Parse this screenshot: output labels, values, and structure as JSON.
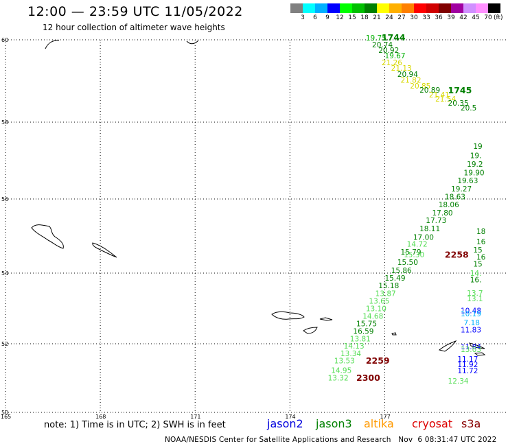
{
  "header": {
    "title": "12:00 — 23:59 UTC 11/05/2022",
    "subtitle": "12 hour collection of altimeter wave heights"
  },
  "legend": {
    "unit": "(ft)",
    "colors": [
      "#808080",
      "#00ffff",
      "#00b0ff",
      "#0000ff",
      "#00ff00",
      "#00c000",
      "#008000",
      "#ffff00",
      "#ffb000",
      "#ff8000",
      "#ff0000",
      "#d00000",
      "#800000",
      "#a000a0",
      "#d090ff",
      "#ff90ff",
      "#000000"
    ],
    "labels": [
      "3",
      "6",
      "9",
      "12",
      "15",
      "18",
      "21",
      "24",
      "27",
      "30",
      "33",
      "36",
      "39",
      "42",
      "45",
      "70"
    ]
  },
  "map": {
    "lat_labels": [
      "60",
      "58",
      "56",
      "54",
      "52",
      "50"
    ],
    "lon_labels": [
      "165",
      "168",
      "171",
      "174",
      "177"
    ]
  },
  "wave_labels": [
    {
      "t": "19.75",
      "lon": 176.4,
      "lat": 59.98,
      "c": "#00b000"
    },
    {
      "t": "20.74",
      "lon": 176.6,
      "lat": 59.82,
      "c": "#008000"
    },
    {
      "t": "20.92",
      "lon": 176.8,
      "lat": 59.68,
      "c": "#008000"
    },
    {
      "t": "19.67",
      "lon": 177.0,
      "lat": 59.55,
      "c": "#00b000"
    },
    {
      "t": "21.26",
      "lon": 176.9,
      "lat": 59.38,
      "c": "#d8d800"
    },
    {
      "t": "21.13",
      "lon": 177.2,
      "lat": 59.25,
      "c": "#d8d800"
    },
    {
      "t": "20.94",
      "lon": 177.4,
      "lat": 59.1,
      "c": "#008000"
    },
    {
      "t": "21.82",
      "lon": 177.5,
      "lat": 58.96,
      "c": "#d8d800"
    },
    {
      "t": "20.85",
      "lon": 177.8,
      "lat": 58.82,
      "c": "#d8d800"
    },
    {
      "t": "20.89",
      "lon": 178.1,
      "lat": 58.72,
      "c": "#008000"
    },
    {
      "t": "21.41",
      "lon": 178.4,
      "lat": 58.6,
      "c": "#d8d800"
    },
    {
      "t": "21.54",
      "lon": 178.6,
      "lat": 58.5,
      "c": "#d8d800"
    },
    {
      "t": "20.35",
      "lon": 179.0,
      "lat": 58.4,
      "c": "#008000"
    },
    {
      "t": "20.5",
      "lon": 179.4,
      "lat": 58.28,
      "c": "#008000"
    },
    {
      "t": "19",
      "lon": 179.8,
      "lat": 57.3,
      "c": "#008000"
    },
    {
      "t": "19.",
      "lon": 179.7,
      "lat": 57.06,
      "c": "#008000"
    },
    {
      "t": "19.2",
      "lon": 179.6,
      "lat": 56.84,
      "c": "#008000"
    },
    {
      "t": "19.90",
      "lon": 179.5,
      "lat": 56.62,
      "c": "#008000"
    },
    {
      "t": "19.63",
      "lon": 179.3,
      "lat": 56.41,
      "c": "#008000"
    },
    {
      "t": "19.27",
      "lon": 179.1,
      "lat": 56.2,
      "c": "#008000"
    },
    {
      "t": "18.63",
      "lon": 178.9,
      "lat": 55.99,
      "c": "#008000"
    },
    {
      "t": "18.06",
      "lon": 178.7,
      "lat": 55.78,
      "c": "#008000"
    },
    {
      "t": "17.80",
      "lon": 178.5,
      "lat": 55.56,
      "c": "#008000"
    },
    {
      "t": "17.73",
      "lon": 178.3,
      "lat": 55.35,
      "c": "#008000"
    },
    {
      "t": "18.11",
      "lon": 178.1,
      "lat": 55.13,
      "c": "#008000"
    },
    {
      "t": "17.00",
      "lon": 177.9,
      "lat": 54.9,
      "c": "#008000"
    },
    {
      "t": "14.72",
      "lon": 177.7,
      "lat": 54.71,
      "c": "#55dd55"
    },
    {
      "t": "15.79",
      "lon": 177.5,
      "lat": 54.5,
      "c": "#008000"
    },
    {
      "t": "15.30",
      "lon": 177.6,
      "lat": 54.43,
      "c": "#55dd55"
    },
    {
      "t": "15.50",
      "lon": 177.4,
      "lat": 54.22,
      "c": "#008000"
    },
    {
      "t": "15.86",
      "lon": 177.2,
      "lat": 54.0,
      "c": "#008000"
    },
    {
      "t": "15.49",
      "lon": 177.0,
      "lat": 53.79,
      "c": "#008000"
    },
    {
      "t": "15.18",
      "lon": 176.8,
      "lat": 53.57,
      "c": "#008000"
    },
    {
      "t": "13.87",
      "lon": 176.7,
      "lat": 53.35,
      "c": "#55dd55"
    },
    {
      "t": "13.65",
      "lon": 176.5,
      "lat": 53.14,
      "c": "#55dd55"
    },
    {
      "t": "13.10",
      "lon": 176.4,
      "lat": 52.92,
      "c": "#55dd55"
    },
    {
      "t": "14.68",
      "lon": 176.3,
      "lat": 52.71,
      "c": "#55dd55"
    },
    {
      "t": "15.75",
      "lon": 176.1,
      "lat": 52.5,
      "c": "#008000"
    },
    {
      "t": "16.59",
      "lon": 176.0,
      "lat": 52.28,
      "c": "#008000"
    },
    {
      "t": "13.81",
      "lon": 175.9,
      "lat": 52.07,
      "c": "#55dd55"
    },
    {
      "t": "14.13",
      "lon": 175.7,
      "lat": 51.86,
      "c": "#55dd55"
    },
    {
      "t": "13.34",
      "lon": 175.6,
      "lat": 51.64,
      "c": "#55dd55"
    },
    {
      "t": "13.53",
      "lon": 175.4,
      "lat": 51.43,
      "c": "#55dd55"
    },
    {
      "t": "14.95",
      "lon": 175.3,
      "lat": 51.15,
      "c": "#55dd55"
    },
    {
      "t": "13.32",
      "lon": 175.2,
      "lat": 50.93,
      "c": "#55dd55"
    },
    {
      "t": "18",
      "lon": 179.9,
      "lat": 55.06,
      "c": "#008000"
    },
    {
      "t": "16",
      "lon": 179.9,
      "lat": 54.78,
      "c": "#008000"
    },
    {
      "t": "15",
      "lon": 179.8,
      "lat": 54.56,
      "c": "#008000"
    },
    {
      "t": "16",
      "lon": 179.9,
      "lat": 54.36,
      "c": "#008000"
    },
    {
      "t": "15",
      "lon": 179.8,
      "lat": 54.18,
      "c": "#008000"
    },
    {
      "t": "14.",
      "lon": 179.7,
      "lat": 53.92,
      "c": "#55dd55"
    },
    {
      "t": "16.",
      "lon": 179.7,
      "lat": 53.74,
      "c": "#008000"
    },
    {
      "t": "13.7",
      "lon": 179.6,
      "lat": 53.36,
      "c": "#55dd55"
    },
    {
      "t": "13.1",
      "lon": 179.6,
      "lat": 53.2,
      "c": "#55dd55"
    },
    {
      "t": "10.48",
      "lon": 179.4,
      "lat": 52.86,
      "c": "#0000ff"
    },
    {
      "t": "10.19",
      "lon": 179.4,
      "lat": 52.78,
      "c": "#00b0ff"
    },
    {
      "t": "7.18",
      "lon": 179.5,
      "lat": 52.52,
      "c": "#00b0ff"
    },
    {
      "t": "11.83",
      "lon": 179.4,
      "lat": 52.32,
      "c": "#0000ff"
    },
    {
      "t": "11.84",
      "lon": 179.4,
      "lat": 51.84,
      "c": "#0000ff"
    },
    {
      "t": "13.03",
      "lon": 179.4,
      "lat": 51.76,
      "c": "#55dd55"
    },
    {
      "t": "11.17",
      "lon": 179.3,
      "lat": 51.48,
      "c": "#0000ff"
    },
    {
      "t": "11.92",
      "lon": 179.3,
      "lat": 51.32,
      "c": "#0000ff"
    },
    {
      "t": "11.72",
      "lon": 179.3,
      "lat": 51.14,
      "c": "#0000ff"
    },
    {
      "t": "12.34",
      "lon": 179.0,
      "lat": 50.84,
      "c": "#55dd55"
    }
  ],
  "time_labels": [
    {
      "t": "1744",
      "lon": 176.9,
      "lat": 59.98,
      "c": "#008000"
    },
    {
      "t": "1745",
      "lon": 179.0,
      "lat": 58.7,
      "c": "#008000"
    },
    {
      "t": "2258",
      "lon": 178.9,
      "lat": 54.42,
      "c": "#800000"
    },
    {
      "t": "2259",
      "lon": 176.4,
      "lat": 51.42,
      "c": "#800000"
    },
    {
      "t": "2300",
      "lon": 176.1,
      "lat": 50.92,
      "c": "#800000"
    }
  ],
  "footer": {
    "note": "note: 1) Time is in UTC; 2) SWH is in feet",
    "satellites": [
      {
        "name": "jason2",
        "color": "#0000dd"
      },
      {
        "name": "jason3",
        "color": "#008000"
      },
      {
        "name": "altika",
        "color": "#ff9900"
      },
      {
        "name": "cryosat",
        "color": "#dd0000"
      },
      {
        "name": "s3a",
        "color": "#880000"
      }
    ],
    "credit": "NOAA/NESDIS Center for Satellite Applications and Research   Nov  6 08:31:47 UTC 2022"
  }
}
